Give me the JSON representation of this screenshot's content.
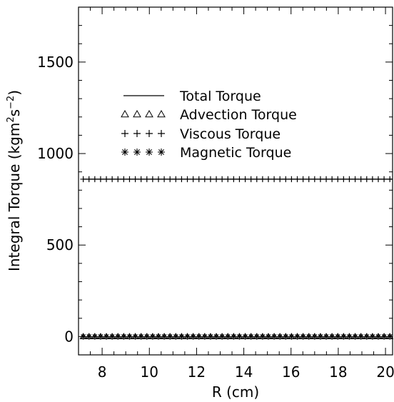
{
  "chart_data": {
    "type": "line",
    "title": "",
    "xlabel": "R (cm)",
    "ylabel_main": "Integral Torque (kgm",
    "ylabel_sup1": "2",
    "ylabel_mid": "s",
    "ylabel_sup2": "−2",
    "ylabel_close": ")",
    "xlim": [
      7.0,
      20.3
    ],
    "ylim": [
      -100,
      1800
    ],
    "xticks": [
      8,
      10,
      12,
      14,
      16,
      18,
      20
    ],
    "yticks": [
      0,
      500,
      1000,
      1500
    ],
    "x_minor_step": 0.5,
    "y_minor_step": 100,
    "legend_position": "upper-left",
    "series": [
      {
        "name": "Total Torque",
        "marker": "line",
        "x": [
          7.2,
          20.3
        ],
        "y": [
          860,
          860
        ]
      },
      {
        "name": "Advection Torque",
        "marker": "triangle",
        "x_range": [
          7.2,
          20.3
        ],
        "step": 0.245,
        "y": 0
      },
      {
        "name": "Viscous Torque",
        "marker": "plus",
        "x_range": [
          7.2,
          20.3
        ],
        "step": 0.245,
        "y": 860
      },
      {
        "name": "Magnetic Torque",
        "marker": "asterisk",
        "x_range": [
          7.2,
          20.3
        ],
        "step": 0.245,
        "y": 0
      }
    ],
    "colors": {
      "axis": "#000000",
      "series": "#000000",
      "background": "#ffffff"
    }
  }
}
